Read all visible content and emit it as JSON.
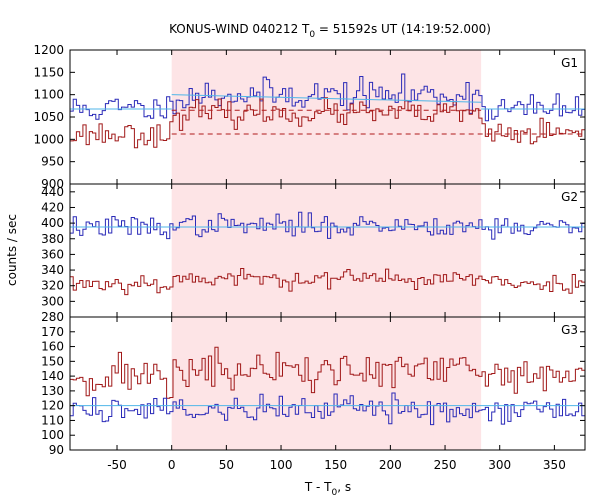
{
  "title": {
    "prefix": "KONUS-WIND 040212 T",
    "sub": "0",
    "suffix": " = 51592s UT (14:19:52.000)"
  },
  "xaxis": {
    "label_main": "T - T",
    "label_sub": "0",
    "label_suffix": ", s",
    "range": [
      -93,
      378
    ],
    "ticks": [
      -50,
      0,
      50,
      100,
      150,
      200,
      250,
      300,
      350
    ]
  },
  "yaxis": {
    "label": "counts / sec"
  },
  "colors": {
    "blue": "#2a2ab8",
    "red": "#a01818",
    "fit": "#4fb6e8",
    "shade": "#fde4e6",
    "bg_level": "#b01a1a"
  },
  "chart_data": [
    {
      "type": "line",
      "panel": "G1",
      "ylim": [
        900,
        1200
      ],
      "yticks": [
        900,
        950,
        1000,
        1050,
        1100,
        1150,
        1200
      ],
      "x_range": [
        -93,
        378
      ],
      "bin_width": 2.944,
      "shaded_interval": [
        0,
        283
      ],
      "series": [
        {
          "color": "blue",
          "baseline": 1068,
          "burst_level": 1100,
          "burst_interval": [
            0,
            283
          ],
          "noise": 17,
          "seed": 11
        },
        {
          "color": "red",
          "baseline": 1012,
          "burst_level": 1058,
          "burst_interval": [
            0,
            283
          ],
          "noise": 14,
          "seed": 23
        }
      ],
      "fits": [
        {
          "color": "fit",
          "x": [
            -93,
            0
          ],
          "y": [
            1068,
            1068
          ]
        },
        {
          "color": "fit",
          "x": [
            0,
            283
          ],
          "y": [
            1100,
            1083
          ]
        },
        {
          "color": "fit",
          "x": [
            283,
            378
          ],
          "y": [
            1068,
            1068
          ]
        }
      ],
      "levels": [
        {
          "color": "bg_level",
          "style": "dashed",
          "x": [
            0,
            378
          ],
          "y": [
            1012,
            1012
          ]
        },
        {
          "color": "bg_level",
          "style": "dashed",
          "x": [
            0,
            283
          ],
          "y": [
            1065,
            1065
          ]
        }
      ]
    },
    {
      "type": "line",
      "panel": "G2",
      "ylim": [
        280,
        450
      ],
      "yticks": [
        280,
        300,
        320,
        340,
        360,
        380,
        400,
        420,
        440
      ],
      "x_range": [
        -93,
        378
      ],
      "bin_width": 2.944,
      "shaded_interval": [
        0,
        283
      ],
      "series": [
        {
          "color": "blue",
          "baseline": 395,
          "burst_level": 397,
          "burst_interval": [
            0,
            283
          ],
          "noise": 7,
          "seed": 37
        },
        {
          "color": "red",
          "baseline": 323,
          "burst_level": 329,
          "burst_interval": [
            0,
            283
          ],
          "noise": 6,
          "seed": 53
        }
      ],
      "fits": [
        {
          "color": "fit",
          "x": [
            -93,
            378
          ],
          "y": [
            395,
            395
          ]
        }
      ],
      "levels": []
    },
    {
      "type": "line",
      "panel": "G3",
      "ylim": [
        90,
        180
      ],
      "yticks": [
        90,
        100,
        110,
        120,
        130,
        140,
        150,
        160,
        170
      ],
      "x_range": [
        -93,
        378
      ],
      "bin_width": 2.944,
      "shaded_interval": [
        0,
        283
      ],
      "series": [
        {
          "color": "red",
          "baseline": 140,
          "burst_level": 143,
          "burst_interval": [
            0,
            283
          ],
          "noise": 7,
          "seed": 71
        },
        {
          "color": "blue",
          "baseline": 118,
          "burst_level": 118,
          "burst_interval": [
            0,
            283
          ],
          "noise": 5,
          "seed": 89
        }
      ],
      "fits": [
        {
          "color": "fit",
          "x": [
            -93,
            378
          ],
          "y": [
            120,
            120
          ]
        }
      ],
      "levels": []
    }
  ]
}
